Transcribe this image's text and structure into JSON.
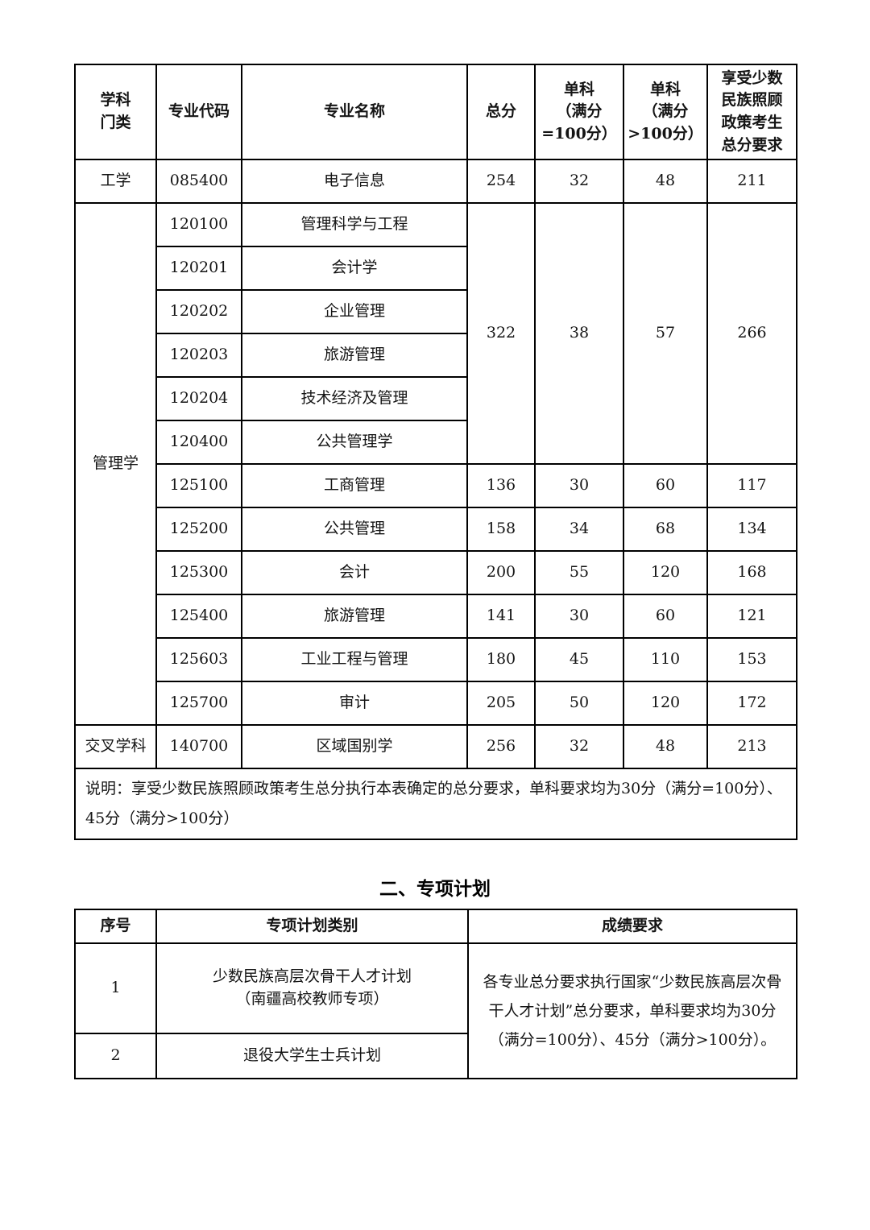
{
  "colors": {
    "border": "#000000",
    "text": "#141414",
    "background": "#ffffff"
  },
  "section1": {
    "table": {
      "rows": [
        {
          "cls": "h1",
          "cells": [
            {
              "v": "学科\n门类",
              "th": 1,
              "name": "col-header-discipline"
            },
            {
              "v": "专业代码",
              "th": 1,
              "name": "col-header-major-code"
            },
            {
              "v": "专业名称",
              "th": 1,
              "name": "col-header-major-name"
            },
            {
              "v": "总分",
              "th": 1,
              "name": "col-header-total-score"
            },
            {
              "v": "单科\n（满分\n=100分）",
              "th": 1,
              "name": "col-header-single-subject-100"
            },
            {
              "v": "单科\n（满分\n>100分）",
              "th": 1,
              "name": "col-header-single-subject-gt100"
            },
            {
              "v": "享受少数\n民族照顾\n政策考生\n总分要求",
              "th": 1,
              "name": "col-header-minority-policy-total"
            }
          ]
        },
        {
          "cls": "r",
          "cells": [
            {
              "v": "工学",
              "name": "discipline-cell"
            },
            {
              "v": "085400"
            },
            {
              "v": "电子信息"
            },
            {
              "v": "254"
            },
            {
              "v": "32"
            },
            {
              "v": "48"
            },
            {
              "v": "211"
            }
          ]
        },
        {
          "cls": "r",
          "cells": [
            {
              "v": "管理学",
              "rs": 12,
              "name": "discipline-cell"
            },
            {
              "v": "120100"
            },
            {
              "v": "管理科学与工程"
            },
            {
              "v": "322",
              "rs": 6
            },
            {
              "v": "38",
              "rs": 6
            },
            {
              "v": "57",
              "rs": 6
            },
            {
              "v": "266",
              "rs": 6
            }
          ]
        },
        {
          "cls": "r",
          "cells": [
            {
              "v": "120201"
            },
            {
              "v": "会计学"
            }
          ]
        },
        {
          "cls": "r",
          "cells": [
            {
              "v": "120202"
            },
            {
              "v": "企业管理"
            }
          ]
        },
        {
          "cls": "r",
          "cells": [
            {
              "v": "120203"
            },
            {
              "v": "旅游管理"
            }
          ]
        },
        {
          "cls": "r",
          "cells": [
            {
              "v": "120204"
            },
            {
              "v": "技术经济及管理"
            }
          ]
        },
        {
          "cls": "r",
          "cells": [
            {
              "v": "120400"
            },
            {
              "v": "公共管理学"
            }
          ]
        },
        {
          "cls": "r",
          "cells": [
            {
              "v": "125100"
            },
            {
              "v": "工商管理"
            },
            {
              "v": "136"
            },
            {
              "v": "30"
            },
            {
              "v": "60"
            },
            {
              "v": "117"
            }
          ]
        },
        {
          "cls": "r",
          "cells": [
            {
              "v": "125200"
            },
            {
              "v": "公共管理"
            },
            {
              "v": "158"
            },
            {
              "v": "34"
            },
            {
              "v": "68"
            },
            {
              "v": "134"
            }
          ]
        },
        {
          "cls": "r",
          "cells": [
            {
              "v": "125300"
            },
            {
              "v": "会计"
            },
            {
              "v": "200"
            },
            {
              "v": "55"
            },
            {
              "v": "120"
            },
            {
              "v": "168"
            }
          ]
        },
        {
          "cls": "r",
          "cells": [
            {
              "v": "125400"
            },
            {
              "v": "旅游管理"
            },
            {
              "v": "141"
            },
            {
              "v": "30"
            },
            {
              "v": "60"
            },
            {
              "v": "121"
            }
          ]
        },
        {
          "cls": "r",
          "cells": [
            {
              "v": "125603"
            },
            {
              "v": "工业工程与管理"
            },
            {
              "v": "180"
            },
            {
              "v": "45"
            },
            {
              "v": "110"
            },
            {
              "v": "153"
            }
          ]
        },
        {
          "cls": "r",
          "cells": [
            {
              "v": "125700"
            },
            {
              "v": "审计"
            },
            {
              "v": "205"
            },
            {
              "v": "50"
            },
            {
              "v": "120"
            },
            {
              "v": "172"
            }
          ]
        },
        {
          "cls": "r",
          "cells": [
            {
              "v": "交叉学科",
              "name": "discipline-cell"
            },
            {
              "v": "140700"
            },
            {
              "v": "区域国别学"
            },
            {
              "v": "256"
            },
            {
              "v": "32"
            },
            {
              "v": "48"
            },
            {
              "v": "213"
            }
          ]
        },
        {
          "cls": "note-row",
          "cells": [
            {
              "v": "说明：享受少数民族照顾政策考生总分执行本表确定的总分要求，单科要求均为30分（满分=100分）、45分（满分>100分）",
              "cs": 7,
              "cls": "note",
              "name": "table-note"
            }
          ]
        }
      ]
    }
  },
  "section2": {
    "title": "二、专项计划",
    "table": {
      "rows": [
        {
          "cls": "h2",
          "cells": [
            {
              "v": "序号",
              "th": 1,
              "name": "col-header-index"
            },
            {
              "v": "专项计划类别",
              "th": 1,
              "name": "col-header-plan-category"
            },
            {
              "v": "成绩要求",
              "th": 1,
              "name": "col-header-score-requirement"
            }
          ]
        },
        {
          "cls": "r1",
          "cells": [
            {
              "v": "1",
              "name": "index-cell"
            },
            {
              "v": "少数民族高层次骨干人才计划\n（南疆高校教师专项）",
              "name": "plan-category-cell"
            },
            {
              "v": "各专业总分要求执行国家“少数民族高层次骨干人才计划”总分要求，单科要求均为30分（满分=100分）、45分（满分>100分）。",
              "rs": 2,
              "cls": "req",
              "name": "score-requirement-cell"
            }
          ]
        },
        {
          "cls": "r2",
          "cells": [
            {
              "v": "2",
              "name": "index-cell"
            },
            {
              "v": "退役大学生士兵计划",
              "name": "plan-category-cell"
            }
          ]
        }
      ]
    }
  }
}
